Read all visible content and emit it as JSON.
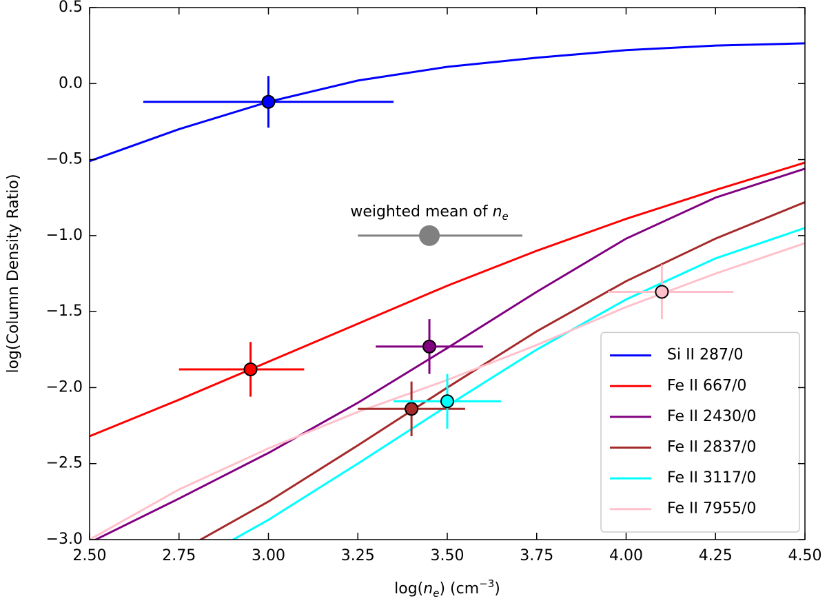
{
  "chart_data": {
    "type": "line",
    "xlabel": [
      "log(",
      "n",
      "e",
      ") (cm",
      "−3",
      ")"
    ],
    "ylabel": "log(Column Density Ratio)",
    "annotation": {
      "text": [
        "weighted mean of ",
        "n",
        "e"
      ],
      "x": 3.45,
      "y": -1.0,
      "xerr": [
        0.2,
        0.26
      ],
      "color": "#808080"
    },
    "x": [
      2.5,
      2.75,
      3.0,
      3.25,
      3.5,
      3.75,
      4.0,
      4.25,
      4.5
    ],
    "series": [
      {
        "name": "Si II 287/0",
        "color": "#0000ff",
        "values": [
          -0.51,
          -0.3,
          -0.12,
          0.02,
          0.11,
          0.17,
          0.22,
          0.25,
          0.265
        ],
        "point": {
          "x": 3.0,
          "y": -0.12,
          "xerr": [
            0.35,
            0.35
          ],
          "yerr": 0.17
        }
      },
      {
        "name": "Fe II 667/0",
        "color": "#ff0000",
        "values": [
          -2.32,
          -2.08,
          -1.83,
          -1.58,
          -1.33,
          -1.1,
          -0.89,
          -0.7,
          -0.52
        ],
        "point": {
          "x": 2.95,
          "y": -1.88,
          "xerr": [
            0.2,
            0.15
          ],
          "yerr": 0.18
        }
      },
      {
        "name": "Fe II 2430/0",
        "color": "#800080",
        "values": [
          -3.02,
          -2.73,
          -2.43,
          -2.1,
          -1.74,
          -1.37,
          -1.02,
          -0.75,
          -0.56
        ],
        "point": {
          "x": 3.45,
          "y": -1.73,
          "xerr": [
            0.15,
            0.15
          ],
          "yerr": 0.18
        }
      },
      {
        "name": "Fe II 2837/0",
        "color": "#a52a2a",
        "values": [
          null,
          -3.08,
          -2.75,
          -2.38,
          -2.0,
          -1.63,
          -1.3,
          -1.02,
          -0.78
        ],
        "point": {
          "x": 3.4,
          "y": -2.14,
          "xerr": [
            0.15,
            0.15
          ],
          "yerr": 0.18
        }
      },
      {
        "name": "Fe II 3117/0",
        "color": "#00ffff",
        "values": [
          null,
          -3.2,
          -2.87,
          -2.5,
          -2.12,
          -1.75,
          -1.42,
          -1.15,
          -0.95
        ],
        "point": {
          "x": 3.5,
          "y": -2.09,
          "xerr": [
            0.15,
            0.15
          ],
          "yerr": 0.18
        }
      },
      {
        "name": "Fe II 7955/0",
        "color": "#ffc0cb",
        "values": [
          -3.0,
          -2.67,
          -2.4,
          -2.16,
          -1.95,
          -1.72,
          -1.47,
          -1.25,
          -1.05
        ],
        "point": {
          "x": 4.1,
          "y": -1.37,
          "xerr": [
            0.15,
            0.2
          ],
          "yerr": 0.18
        }
      }
    ],
    "xlim": [
      2.5,
      4.5
    ],
    "ylim": [
      -3.0,
      0.5
    ],
    "xticks": [
      {
        "value": 2.5,
        "label": "2.50"
      },
      2.75,
      {
        "value": 3.0,
        "label": "3.00"
      },
      3.25,
      {
        "value": 3.5,
        "label": "3.50"
      },
      3.75,
      {
        "value": 4.0,
        "label": "4.00"
      },
      4.25,
      {
        "value": 4.5,
        "label": "4.50"
      }
    ],
    "yticks": [
      {
        "value": -3.0,
        "label": "−3.0"
      },
      {
        "value": -2.5,
        "label": "−2.5"
      },
      {
        "value": -2.0,
        "label": "−2.0"
      },
      {
        "value": -1.5,
        "label": "−1.5"
      },
      {
        "value": -1.0,
        "label": "−1.0"
      },
      {
        "value": -0.5,
        "label": "−0.5"
      },
      {
        "value": 0.0,
        "label": "0.0"
      },
      0.5
    ],
    "legend": "lower right",
    "grid": false
  }
}
